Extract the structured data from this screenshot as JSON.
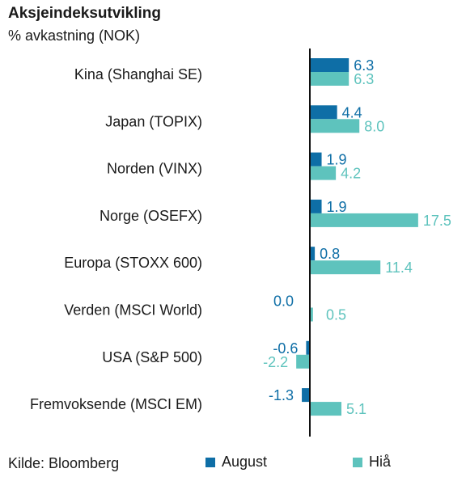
{
  "chart_data": {
    "type": "bar",
    "orientation": "horizontal",
    "title": "Aksjeindeksutvikling",
    "subtitle": "% avkastning (NOK)",
    "source": "Kilde: Bloomberg",
    "categories": [
      "Kina (Shanghai SE)",
      "Japan (TOPIX)",
      "Norden (VINX)",
      "Norge (OSEFX)",
      "Europa (STOXX 600)",
      "Verden (MSCI World)",
      "USA (S&P 500)",
      "Fremvoksende (MSCI EM)"
    ],
    "series": [
      {
        "name": "August",
        "color": "#0e6ea6",
        "values": [
          6.3,
          4.4,
          1.9,
          1.9,
          0.8,
          0.0,
          -0.6,
          -1.3
        ],
        "labels": [
          "6.3",
          "4.4",
          "1.9",
          "1.9",
          "0.8",
          "0.0",
          "-0.6",
          "-1.3"
        ]
      },
      {
        "name": "Hiå",
        "color": "#5ec3bd",
        "values": [
          6.3,
          8.0,
          4.2,
          17.5,
          11.4,
          0.5,
          -2.2,
          5.1
        ],
        "labels": [
          "6.3",
          "8.0",
          "4.2",
          "17.5",
          "11.4",
          "0.5",
          "-2.2",
          "5.1"
        ]
      }
    ],
    "legend_position": "bottom",
    "grid": false
  }
}
